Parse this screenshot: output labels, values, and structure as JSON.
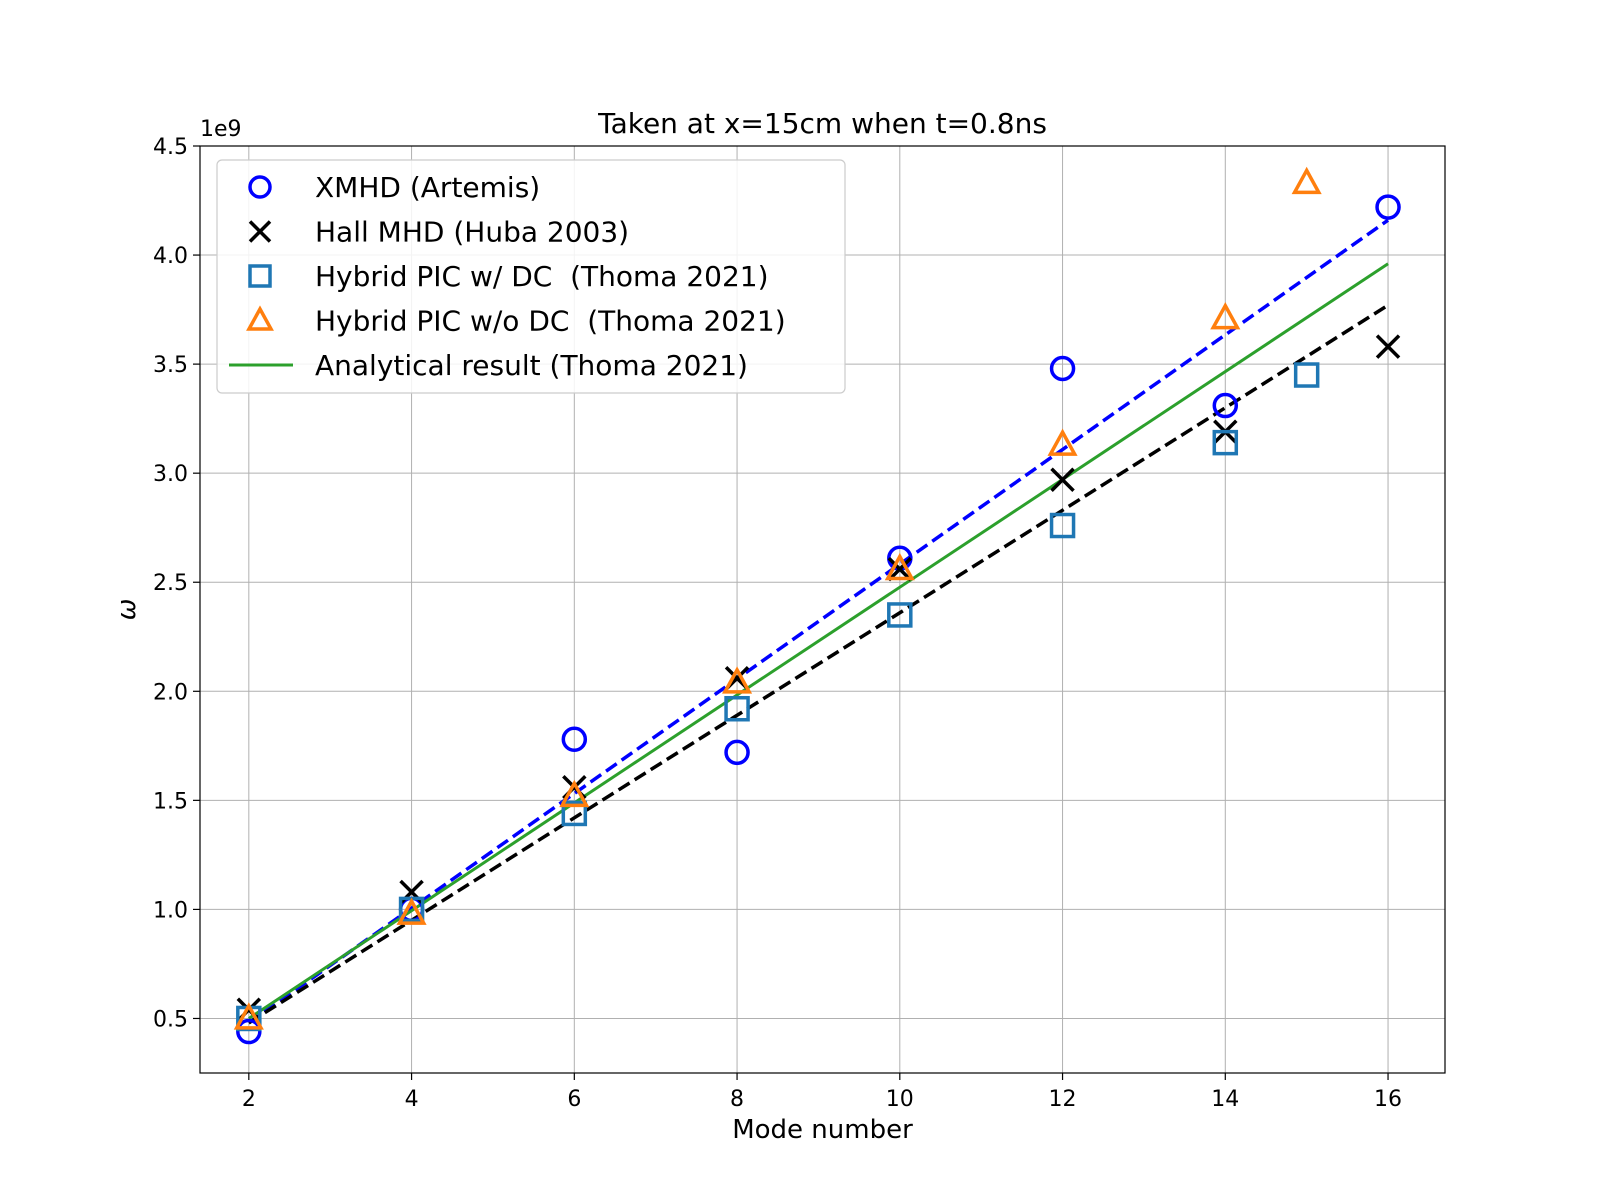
{
  "chart_data": {
    "type": "scatter",
    "title": "Taken at x=15cm when t=0.8ns",
    "xlabel": "Mode number",
    "ylabel": "ω",
    "y_offset_label": "1e9",
    "y_scale_factor": 1000000000,
    "xlim": [
      1.4,
      16.7
    ],
    "ylim": [
      0.25,
      4.5
    ],
    "xticks": [
      2,
      4,
      6,
      8,
      10,
      12,
      14,
      16
    ],
    "xtick_labels": [
      "2",
      "4",
      "6",
      "8",
      "10",
      "12",
      "14",
      "16"
    ],
    "yticks": [
      0.5,
      1.0,
      1.5,
      2.0,
      2.5,
      3.0,
      3.5,
      4.0,
      4.5
    ],
    "ytick_labels": [
      "0.5",
      "1.0",
      "1.5",
      "2.0",
      "2.5",
      "3.0",
      "3.5",
      "4.0",
      "4.5"
    ],
    "grid": true,
    "legend_position": "top-left",
    "series": [
      {
        "name": "XMHD (Artemis)",
        "marker": "circle",
        "color": "#0000ff",
        "x": [
          2,
          4,
          6,
          8,
          10,
          12,
          14,
          16
        ],
        "y": [
          0.44,
          1.0,
          1.78,
          1.72,
          2.61,
          3.48,
          3.31,
          4.22
        ]
      },
      {
        "name": "Hall MHD (Huba 2003)",
        "marker": "x",
        "color": "#000000",
        "x": [
          2,
          4,
          6,
          8,
          10,
          12,
          14,
          16
        ],
        "y": [
          0.54,
          1.08,
          1.56,
          2.06,
          2.56,
          2.97,
          3.19,
          3.58
        ]
      },
      {
        "name": "Hybrid PIC w/ DC  (Thoma 2021)",
        "marker": "square",
        "color": "#1f77b4",
        "x": [
          2,
          4,
          6,
          8,
          10,
          12,
          14,
          15
        ],
        "y": [
          0.5,
          1.0,
          1.44,
          1.92,
          2.35,
          2.76,
          3.14,
          3.45
        ]
      },
      {
        "name": "Hybrid PIC w/o DC  (Thoma 2021)",
        "marker": "triangle",
        "color": "#ff7f0e",
        "x": [
          2,
          4,
          6,
          8,
          10,
          12,
          14,
          15
        ],
        "y": [
          0.5,
          0.98,
          1.52,
          2.04,
          2.56,
          3.13,
          3.71,
          4.33
        ]
      },
      {
        "name": "Analytical result (Thoma 2021)",
        "marker": "line",
        "color": "#2ca02c",
        "x": [
          2,
          16
        ],
        "y": [
          0.5,
          3.96
        ]
      }
    ],
    "fit_lines": [
      {
        "style": "dashed",
        "color": "#0000ff",
        "x": [
          2,
          16
        ],
        "y": [
          0.48,
          4.16
        ]
      },
      {
        "style": "dashed",
        "color": "#000000",
        "x": [
          2,
          16
        ],
        "y": [
          0.48,
          3.77
        ]
      }
    ]
  }
}
